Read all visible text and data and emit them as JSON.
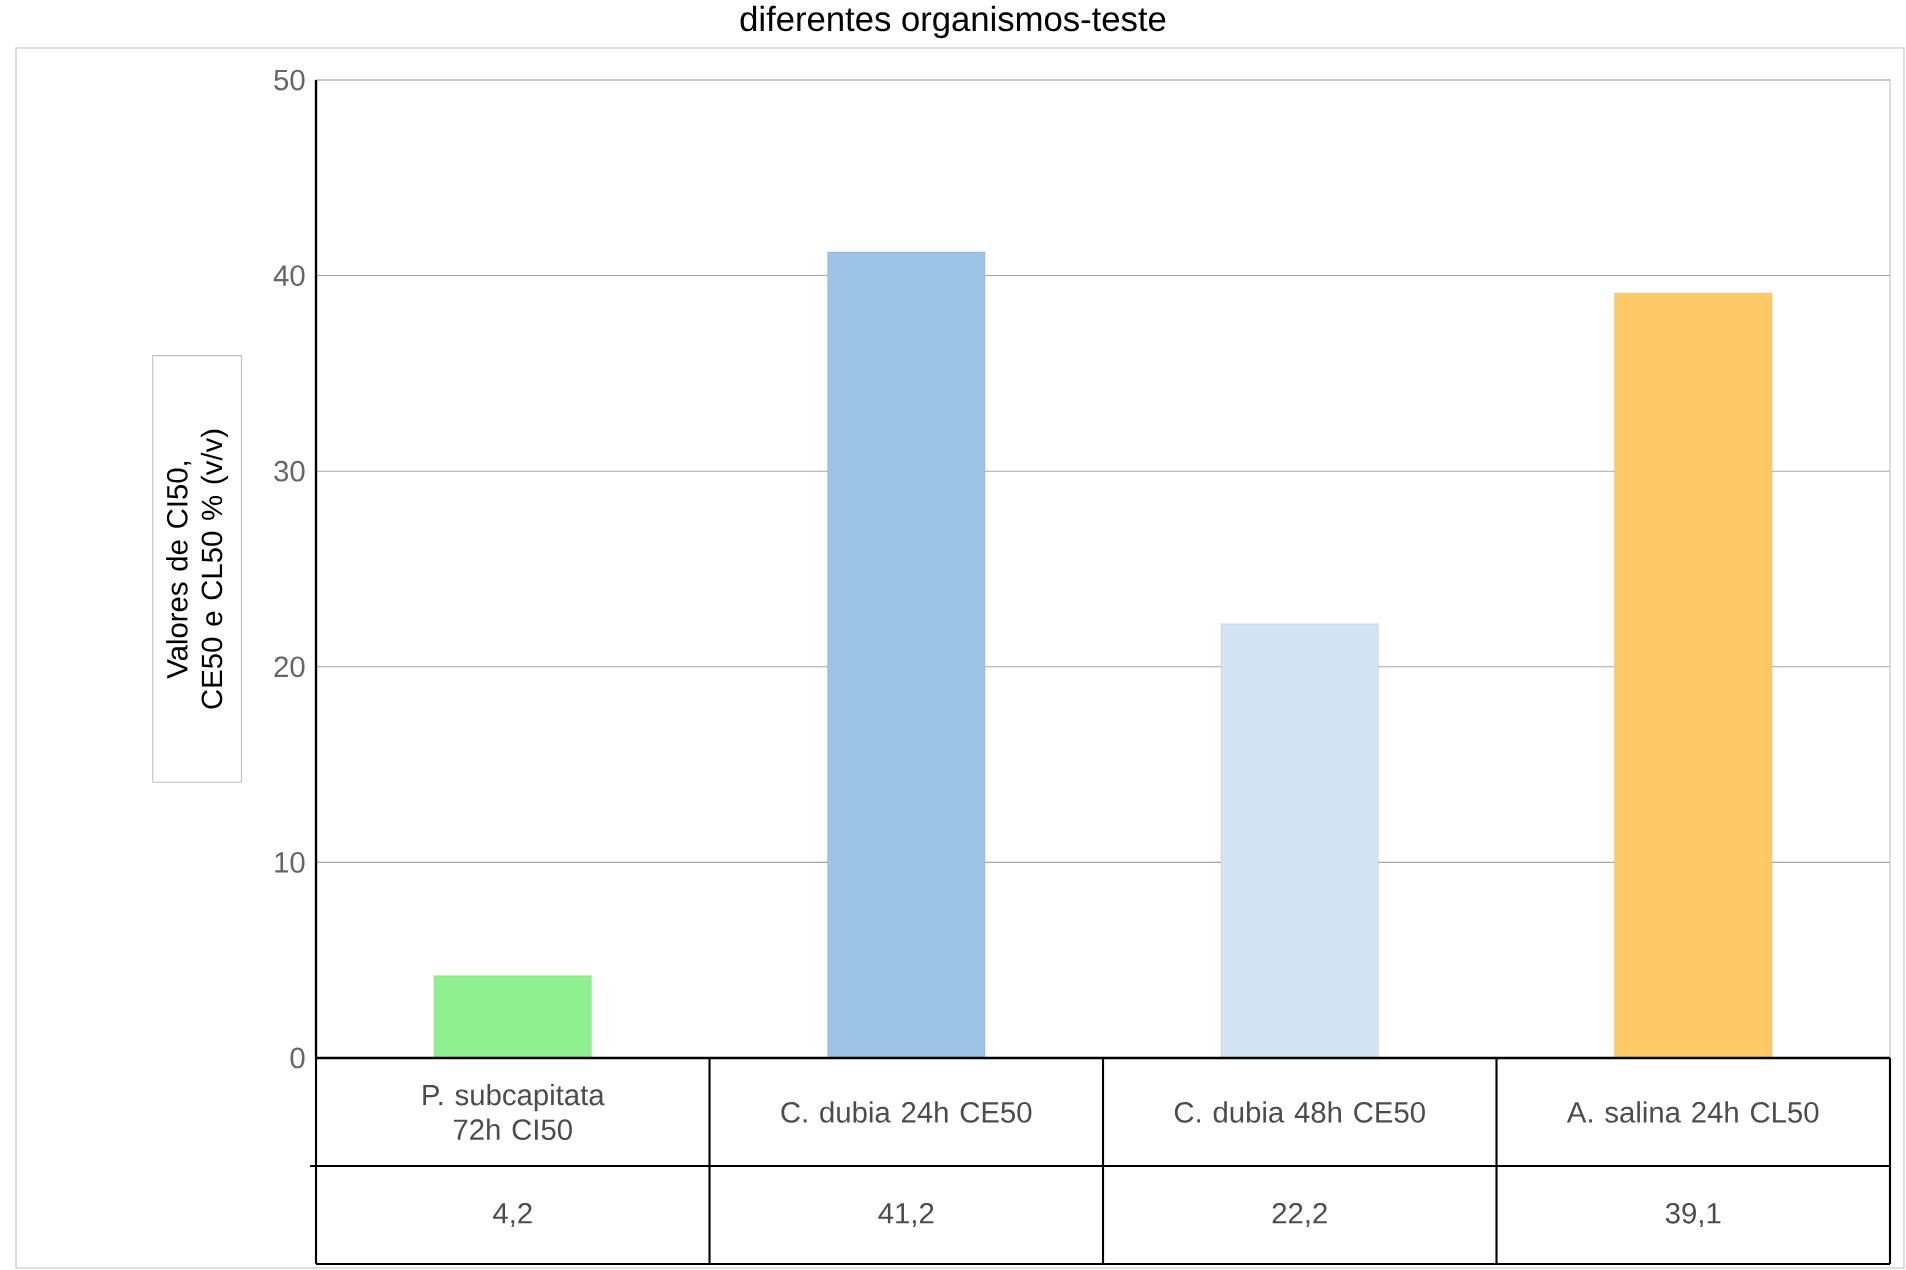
{
  "chart_data": {
    "type": "bar",
    "title": "diferentes organismos-teste",
    "ylabel": "Valores de CI50, CE50 e CL50 % (v/v)",
    "categories": [
      "P. subcapitata 72h CI50",
      "C. dubia 24h CE50",
      "C. dubia 48h CE50",
      "A. salina 24h CL50"
    ],
    "values": [
      4.2,
      41.2,
      22.2,
      39.1
    ],
    "colors": [
      "#8ff08f",
      "#9dc3e6",
      "#d2e4f3",
      "#ffc966"
    ],
    "value_labels": [
      "4,2",
      "41,2",
      "22,2",
      "39,1"
    ],
    "ylim": [
      0,
      50
    ],
    "yticks": [
      0,
      10,
      20,
      30,
      40,
      50
    ],
    "grid": "y"
  }
}
